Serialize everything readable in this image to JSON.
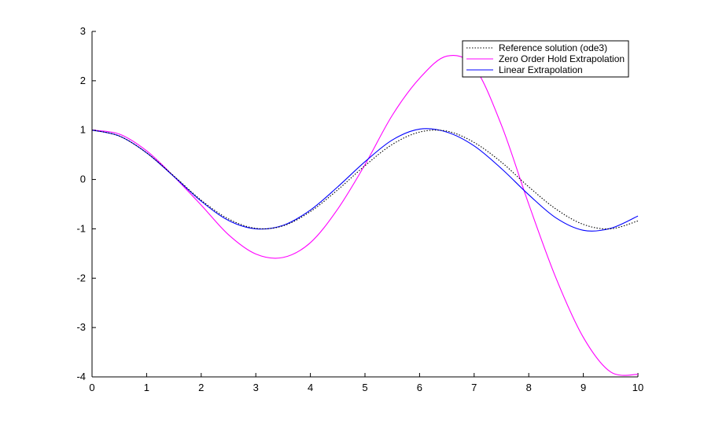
{
  "chart_data": {
    "type": "line",
    "title": "",
    "xlabel": "",
    "ylabel": "",
    "xlim": [
      0,
      10
    ],
    "ylim": [
      -4,
      3
    ],
    "x_ticks": [
      "0",
      "1",
      "2",
      "3",
      "4",
      "5",
      "6",
      "7",
      "8",
      "9",
      "10"
    ],
    "y_ticks": [
      "-4",
      "-3",
      "-2",
      "-1",
      "0",
      "1",
      "2",
      "3"
    ],
    "grid": false,
    "legend_position": "top-right",
    "x": [
      0,
      0.5,
      1,
      1.5,
      2,
      2.5,
      3,
      3.5,
      4,
      4.5,
      5,
      5.5,
      6,
      6.5,
      7,
      7.5,
      8,
      8.5,
      9,
      9.5,
      10
    ],
    "series": [
      {
        "name": "Reference solution (ode3)",
        "color": "#000000",
        "style": "dotted",
        "values": [
          1.0,
          0.88,
          0.54,
          0.07,
          -0.42,
          -0.8,
          -0.99,
          -0.94,
          -0.65,
          -0.21,
          0.28,
          0.71,
          0.96,
          0.98,
          0.75,
          0.35,
          -0.15,
          -0.6,
          -0.91,
          -1.0,
          -0.84
        ]
      },
      {
        "name": "Zero Order Hold Extrapolation",
        "color": "#ff00ff",
        "style": "solid",
        "values": [
          1.0,
          0.92,
          0.58,
          0.06,
          -0.52,
          -1.12,
          -1.51,
          -1.58,
          -1.28,
          -0.6,
          0.3,
          1.3,
          2.05,
          2.5,
          2.28,
          1.1,
          -0.5,
          -2.0,
          -3.2,
          -3.9,
          -3.95
        ]
      },
      {
        "name": "Linear Extrapolation",
        "color": "#0000ff",
        "style": "solid",
        "values": [
          1.0,
          0.88,
          0.54,
          0.06,
          -0.44,
          -0.83,
          -1.0,
          -0.93,
          -0.62,
          -0.15,
          0.36,
          0.8,
          1.02,
          0.96,
          0.68,
          0.22,
          -0.31,
          -0.78,
          -1.03,
          -0.99,
          -0.74
        ]
      }
    ]
  }
}
